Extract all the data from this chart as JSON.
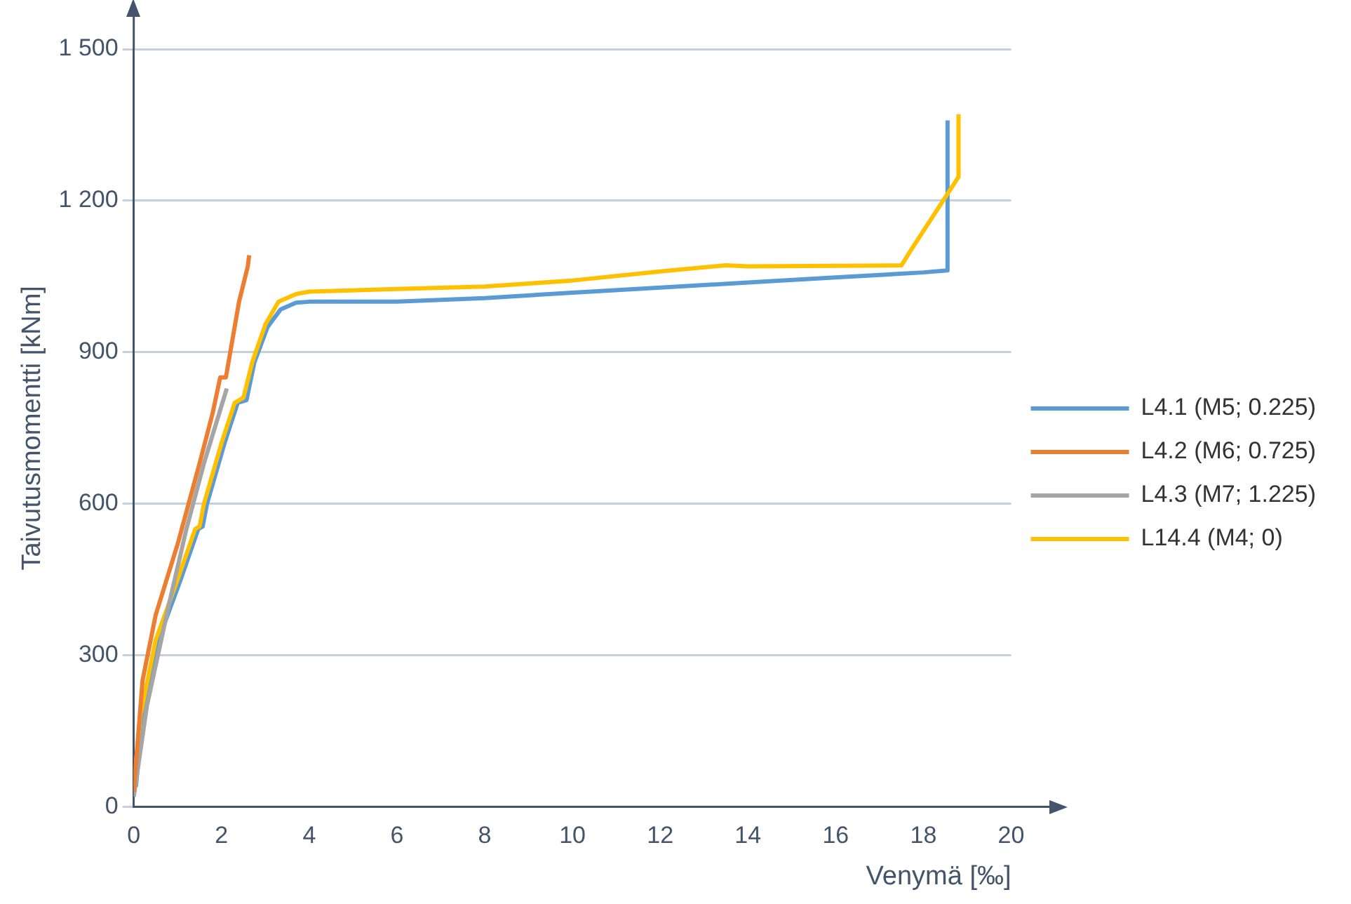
{
  "chart_data": {
    "type": "line",
    "xlabel": "Venymä [‰]",
    "ylabel": "Taivutusmomentti [kNm]",
    "xlim": [
      0,
      20
    ],
    "xticks": [
      0,
      2,
      4,
      6,
      8,
      10,
      12,
      14,
      16,
      18,
      20
    ],
    "ylim": [
      0,
      1500
    ],
    "yticks": [
      0,
      300,
      600,
      900,
      {
        "value": 1200,
        "label": "1 200"
      },
      {
        "value": 1500,
        "label": "1 500"
      }
    ],
    "grid": "y",
    "legend": "right",
    "marker": "none",
    "line_style": "solid",
    "series": [
      {
        "name": "L4.1 (M5; 0.225)",
        "color": "#5b9bd5",
        "x": [
          0.05,
          0.2,
          0.56,
          1.07,
          1.47,
          1.57,
          1.67,
          2.07,
          2.37,
          2.57,
          2.75,
          3.05,
          3.35,
          3.7,
          4,
          6,
          8,
          10,
          12,
          14,
          16,
          18,
          18.55,
          18.55
        ],
        "values": [
          40,
          180,
          330,
          450,
          550,
          555,
          600,
          720,
          800,
          805,
          880,
          950,
          985,
          998,
          1000,
          1000,
          1007,
          1018,
          1028,
          1038,
          1048,
          1058,
          1062,
          1359
        ]
      },
      {
        "name": "L4.2 (M6; 0.725)",
        "color": "#ed7d31",
        "x": [
          0,
          0.2,
          0.5,
          1,
          1.5,
          1.8,
          1.97,
          2.1,
          2.4,
          2.6,
          2.63
        ],
        "values": [
          30,
          250,
          380,
          520,
          680,
          780,
          850,
          850,
          1000,
          1070,
          1092
        ]
      },
      {
        "name": "L4.3 (M7; 1.225)",
        "color": "#a5a5a5",
        "x": [
          0,
          0.3,
          0.8,
          1.2,
          1.6,
          2.12
        ],
        "values": [
          20,
          200,
          400,
          550,
          680,
          828
        ]
      },
      {
        "name": "L14.4 (M4; 0)",
        "color": "#ffc000",
        "x": [
          0,
          0.15,
          0.5,
          1,
          1.4,
          1.5,
          1.6,
          2,
          2.3,
          2.5,
          2.7,
          3,
          3.3,
          3.7,
          4,
          6,
          8,
          10,
          12,
          13.5,
          14,
          17.5,
          17.7,
          18.8,
          18.8
        ],
        "values": [
          40,
          180,
          330,
          450,
          550,
          555,
          600,
          720,
          800,
          810,
          880,
          955,
          1000,
          1015,
          1020,
          1025,
          1030,
          1042,
          1060,
          1072,
          1070,
          1072,
          1100,
          1247,
          1371
        ]
      }
    ]
  }
}
